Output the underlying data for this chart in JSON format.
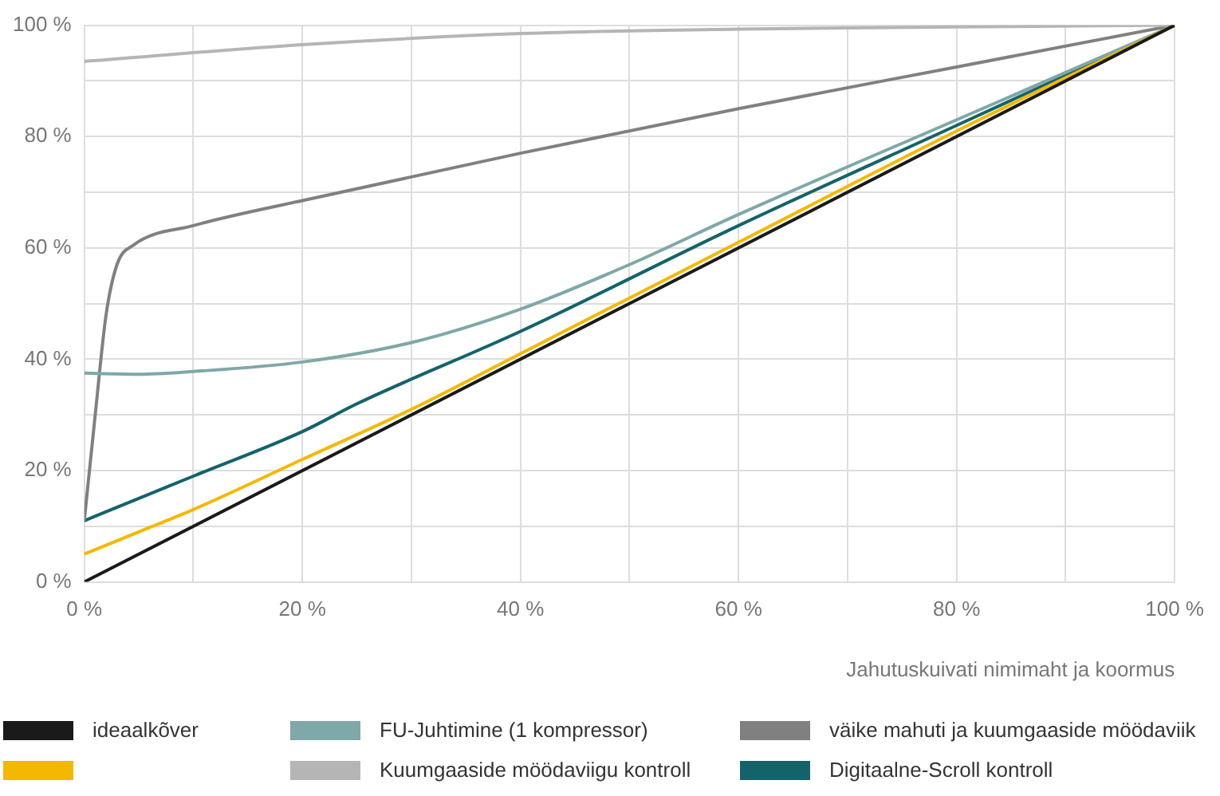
{
  "chart_data": {
    "type": "line",
    "xlabel": "Jahutuskuivati nimimaht ja koormus",
    "xlim": [
      0,
      100
    ],
    "ylim": [
      0,
      100
    ],
    "xticks": [
      {
        "value": 0,
        "label": "0 %"
      },
      {
        "value": 10,
        "label": null
      },
      {
        "value": 20,
        "label": "20 %"
      },
      {
        "value": 30,
        "label": null
      },
      {
        "value": 40,
        "label": "40 %"
      },
      {
        "value": 50,
        "label": null
      },
      {
        "value": 60,
        "label": "60 %"
      },
      {
        "value": 70,
        "label": null
      },
      {
        "value": 80,
        "label": "80 %"
      },
      {
        "value": 90,
        "label": null
      },
      {
        "value": 100,
        "label": "100 %"
      }
    ],
    "yticks": [
      {
        "value": 0,
        "label": "0 %"
      },
      {
        "value": 10,
        "label": null
      },
      {
        "value": 20,
        "label": "20 %"
      },
      {
        "value": 30,
        "label": null
      },
      {
        "value": 40,
        "label": "40 %"
      },
      {
        "value": 50,
        "label": null
      },
      {
        "value": 60,
        "label": "60 %"
      },
      {
        "value": 70,
        "label": null
      },
      {
        "value": 80,
        "label": "80 %"
      },
      {
        "value": 90,
        "label": null
      },
      {
        "value": 100,
        "label": "100 %"
      }
    ],
    "grid": true,
    "legend": "bottom",
    "marker": "none",
    "line_style": "solid",
    "series": [
      {
        "name": "ideaalkõver",
        "color": "#1a1a1a",
        "x": [
          0,
          100
        ],
        "values": [
          0,
          100
        ]
      },
      {
        "color": "#f5b800",
        "x": [
          0,
          5,
          10,
          20,
          30,
          40,
          60,
          80,
          100
        ],
        "values": [
          5,
          9,
          13,
          22,
          31,
          41,
          61,
          81,
          100
        ]
      },
      {
        "name": "FU-Juhtimine (1 kompressor)",
        "color": "#7fa8a8",
        "x": [
          0,
          5,
          10,
          20,
          30,
          40,
          50,
          60,
          80,
          100
        ],
        "values": [
          37.5,
          37.3,
          37.8,
          39.5,
          43,
          49,
          57,
          66,
          83,
          100
        ]
      },
      {
        "name": "Kuumgaaside möödaviigu kontroll",
        "color": "#b5b5b5",
        "x": [
          0,
          20,
          40,
          60,
          80,
          100
        ],
        "values": [
          93.5,
          96.5,
          98.5,
          99.3,
          99.7,
          100
        ]
      },
      {
        "name": "väike mahuti ja kuumgaaside möödaviik",
        "color": "#808080",
        "x": [
          0,
          1,
          2,
          3,
          4.5,
          10,
          20,
          40,
          60,
          80,
          100
        ],
        "values": [
          11,
          30,
          48,
          57,
          60.5,
          64,
          68.5,
          77,
          85,
          92.5,
          100
        ]
      },
      {
        "name": "Digitaalne-Scroll kontroll",
        "color": "#14636b",
        "x": [
          0,
          5,
          10,
          20,
          25,
          40,
          60,
          80,
          100
        ],
        "values": [
          11,
          15,
          19,
          27,
          32,
          45,
          64,
          82,
          100
        ]
      }
    ]
  }
}
